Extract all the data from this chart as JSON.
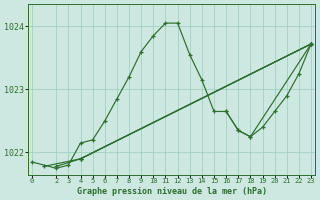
{
  "background_color": "#cce8e0",
  "grid_color": "#99ccbb",
  "line_color": "#2d6e2d",
  "title": "Graphe pression niveau de la mer (hPa)",
  "ylim": [
    1021.65,
    1024.35
  ],
  "yticks": [
    1022,
    1023,
    1024
  ],
  "xlim": [
    -0.3,
    23.3
  ],
  "xticks": [
    0,
    2,
    3,
    4,
    5,
    6,
    7,
    8,
    9,
    10,
    11,
    12,
    13,
    14,
    15,
    16,
    17,
    18,
    19,
    20,
    21,
    22,
    23
  ],
  "line1_x": [
    0,
    2,
    3,
    4,
    5,
    6,
    7,
    8,
    9,
    10,
    11,
    12,
    13,
    14,
    15,
    16,
    17,
    18,
    23
  ],
  "line1_y": [
    1021.85,
    1021.75,
    1021.8,
    1022.15,
    1022.2,
    1022.5,
    1022.85,
    1023.2,
    1023.6,
    1023.85,
    1024.05,
    1024.05,
    1023.55,
    1023.15,
    1022.65,
    1022.65,
    1022.35,
    1022.25,
    1023.72
  ],
  "line2_x": [
    1,
    4,
    23
  ],
  "line2_y": [
    1021.78,
    1021.9,
    1023.72
  ],
  "line3_x": [
    2,
    4,
    23
  ],
  "line3_y": [
    1021.78,
    1021.9,
    1023.72
  ],
  "line4_x": [
    4,
    23
  ],
  "line4_y": [
    1021.9,
    1023.72
  ],
  "line5_x": [
    16,
    17,
    18,
    19,
    20,
    21,
    22,
    23
  ],
  "line5_y": [
    1022.65,
    1022.35,
    1022.25,
    1022.4,
    1022.65,
    1022.9,
    1023.25,
    1023.72
  ]
}
